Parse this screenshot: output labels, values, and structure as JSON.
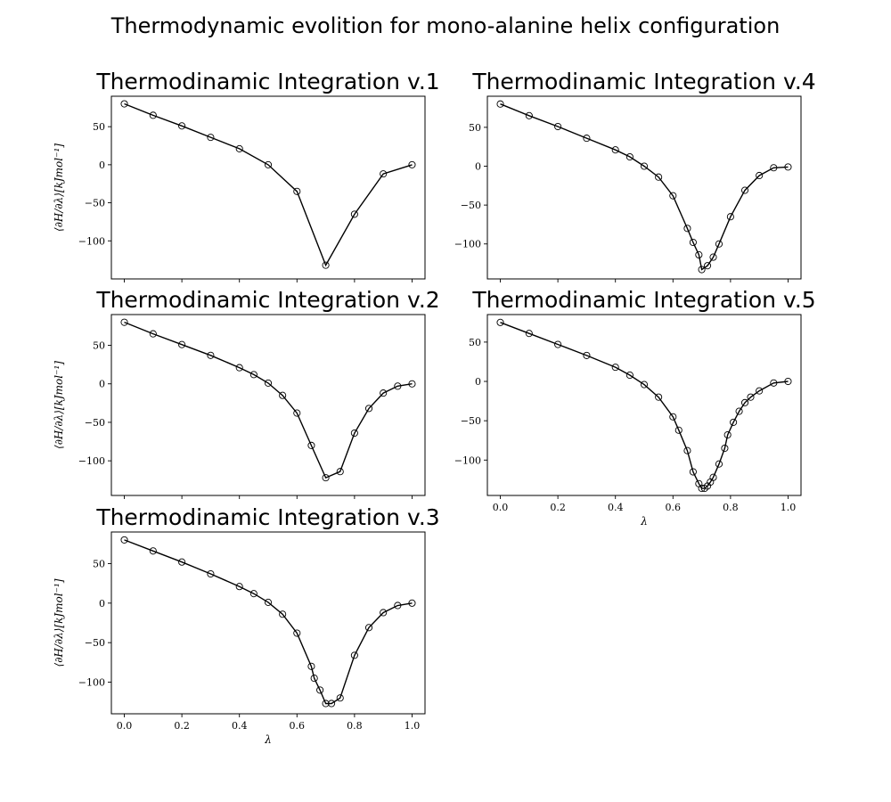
{
  "figure": {
    "suptitle": "Thermodynamic evolition for mono-alanine helix configuration"
  },
  "chart_data": [
    {
      "type": "line",
      "title": "Thermodinamic Integration v.1",
      "xlabel": "",
      "ylabel": "⟨∂H/∂λ⟩[kJmol⁻¹]",
      "xlim": [
        0,
        1
      ],
      "ylim": [
        -150,
        90
      ],
      "xticks": [
        0,
        0.2,
        0.4,
        0.6,
        0.8,
        1.0
      ],
      "xtick_labels": [
        "",
        "",
        "",
        "",
        "",
        ""
      ],
      "yticks": [
        -100,
        -50,
        0,
        50
      ],
      "ytick_labels": [
        "−100",
        "−50",
        "0",
        "50"
      ],
      "x": [
        0.0,
        0.1,
        0.2,
        0.3,
        0.4,
        0.5,
        0.6,
        0.7,
        0.8,
        0.9,
        1.0
      ],
      "y": [
        80,
        65,
        51,
        36,
        21,
        0,
        -35,
        -132,
        -65,
        -12,
        0
      ]
    },
    {
      "type": "line",
      "title": "Thermodinamic Integration v.2",
      "xlabel": "",
      "ylabel": "⟨∂H/∂λ⟩[kJmol⁻¹]",
      "xlim": [
        0,
        1
      ],
      "ylim": [
        -145,
        90
      ],
      "xticks": [
        0,
        0.2,
        0.4,
        0.6,
        0.8,
        1.0
      ],
      "xtick_labels": [
        "",
        "",
        "",
        "",
        "",
        ""
      ],
      "yticks": [
        -100,
        -50,
        0,
        50
      ],
      "ytick_labels": [
        "−100",
        "−50",
        "0",
        "50"
      ],
      "x": [
        0.0,
        0.1,
        0.2,
        0.3,
        0.4,
        0.45,
        0.5,
        0.55,
        0.6,
        0.65,
        0.7,
        0.75,
        0.8,
        0.85,
        0.9,
        0.95,
        1.0
      ],
      "y": [
        80,
        65,
        51,
        37,
        21,
        12,
        1,
        -15,
        -38,
        -80,
        -122,
        -114,
        -64,
        -32,
        -12,
        -3,
        0
      ]
    },
    {
      "type": "line",
      "title": "Thermodinamic Integration v.3",
      "xlabel": "λ",
      "ylabel": "⟨∂H/∂λ⟩[kJmol⁻¹]",
      "xlim": [
        0,
        1
      ],
      "ylim": [
        -140,
        90
      ],
      "xticks": [
        0,
        0.2,
        0.4,
        0.6,
        0.8,
        1.0
      ],
      "xtick_labels": [
        "0.0",
        "0.2",
        "0.4",
        "0.6",
        "0.8",
        "1.0"
      ],
      "yticks": [
        -100,
        -50,
        0,
        50
      ],
      "ytick_labels": [
        "−100",
        "−50",
        "0",
        "50"
      ],
      "x": [
        0.0,
        0.1,
        0.2,
        0.3,
        0.4,
        0.45,
        0.5,
        0.55,
        0.6,
        0.65,
        0.66,
        0.68,
        0.7,
        0.72,
        0.75,
        0.8,
        0.85,
        0.9,
        0.95,
        1.0
      ],
      "y": [
        80,
        66,
        52,
        37,
        21,
        12,
        1,
        -14,
        -38,
        -80,
        -95,
        -110,
        -127,
        -127,
        -120,
        -66,
        -31,
        -12,
        -3,
        0
      ]
    },
    {
      "type": "line",
      "title": "Thermodinamic Integration v.4",
      "xlabel": "",
      "ylabel": "",
      "xlim": [
        0,
        1
      ],
      "ylim": [
        -145,
        90
      ],
      "xticks": [
        0,
        0.2,
        0.4,
        0.6,
        0.8,
        1.0
      ],
      "xtick_labels": [
        "",
        "",
        "",
        "",
        "",
        ""
      ],
      "yticks": [
        -100,
        -50,
        0,
        50
      ],
      "ytick_labels": [
        "−100",
        "−50",
        "0",
        "50"
      ],
      "x": [
        0.0,
        0.1,
        0.2,
        0.3,
        0.4,
        0.45,
        0.5,
        0.55,
        0.6,
        0.65,
        0.67,
        0.69,
        0.7,
        0.72,
        0.74,
        0.76,
        0.8,
        0.85,
        0.9,
        0.95,
        1.0
      ],
      "y": [
        80,
        65,
        51,
        36,
        21,
        12,
        0,
        -14,
        -38,
        -80,
        -98,
        -114,
        -133,
        -128,
        -117,
        -100,
        -65,
        -31,
        -12,
        -2,
        -1
      ]
    },
    {
      "type": "line",
      "title": "Thermodinamic Integration v.5",
      "xlabel": "λ",
      "ylabel": "",
      "xlim": [
        0,
        1
      ],
      "ylim": [
        -145,
        85
      ],
      "xticks": [
        0,
        0.2,
        0.4,
        0.6,
        0.8,
        1.0
      ],
      "xtick_labels": [
        "0.0",
        "0.2",
        "0.4",
        "0.6",
        "0.8",
        "1.0"
      ],
      "yticks": [
        -100,
        -50,
        0,
        50
      ],
      "ytick_labels": [
        "−100",
        "−50",
        "0",
        "50"
      ],
      "x": [
        0.0,
        0.1,
        0.2,
        0.3,
        0.4,
        0.45,
        0.5,
        0.55,
        0.6,
        0.62,
        0.65,
        0.67,
        0.69,
        0.7,
        0.71,
        0.72,
        0.73,
        0.74,
        0.76,
        0.78,
        0.79,
        0.81,
        0.83,
        0.85,
        0.87,
        0.9,
        0.95,
        1.0
      ],
      "y": [
        75,
        61,
        47,
        33,
        18,
        8,
        -4,
        -20,
        -45,
        -62,
        -88,
        -115,
        -130,
        -136,
        -136,
        -133,
        -128,
        -122,
        -105,
        -85,
        -68,
        -52,
        -38,
        -27,
        -20,
        -12,
        -2,
        0
      ]
    }
  ]
}
